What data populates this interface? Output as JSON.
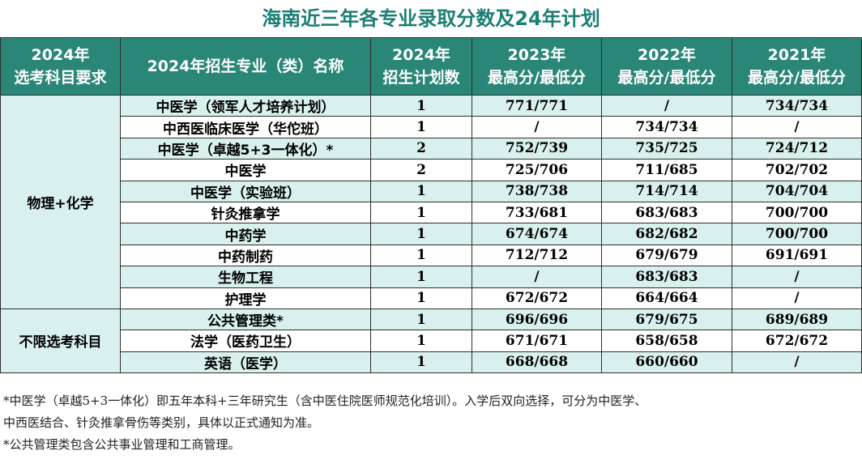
{
  "title": "海南近三年各专业录取分数及24年计划",
  "headers": {
    "req": [
      "2024年",
      "选考科目要求"
    ],
    "major": "2024年招生专业（类）名称",
    "plan": [
      "2024年",
      "招生计划数"
    ],
    "y2023": [
      "2023年",
      "最高分/最低分"
    ],
    "y2022": [
      "2022年",
      "最高分/最低分"
    ],
    "y2021": [
      "2021年",
      "最高分/最低分"
    ]
  },
  "groups": [
    {
      "requirement": "物理+化学",
      "rows": [
        {
          "major": "中医学（领军人才培养计划）",
          "plan": "1",
          "y2023": "771/771",
          "y2022": "/",
          "y2021": "734/734"
        },
        {
          "major": "中西医临床医学（华佗班）",
          "plan": "1",
          "y2023": "/",
          "y2022": "734/734",
          "y2021": "/"
        },
        {
          "major": "中医学（卓越5+3一体化）*",
          "plan": "2",
          "y2023": "752/739",
          "y2022": "735/725",
          "y2021": "724/712"
        },
        {
          "major": "中医学",
          "plan": "2",
          "y2023": "725/706",
          "y2022": "711/685",
          "y2021": "702/702"
        },
        {
          "major": "中医学（实验班）",
          "plan": "1",
          "y2023": "738/738",
          "y2022": "714/714",
          "y2021": "704/704"
        },
        {
          "major": "针灸推拿学",
          "plan": "1",
          "y2023": "733/681",
          "y2022": "683/683",
          "y2021": "700/700"
        },
        {
          "major": "中药学",
          "plan": "1",
          "y2023": "674/674",
          "y2022": "682/682",
          "y2021": "700/700"
        },
        {
          "major": "中药制药",
          "plan": "1",
          "y2023": "712/712",
          "y2022": "679/679",
          "y2021": "691/691"
        },
        {
          "major": "生物工程",
          "plan": "1",
          "y2023": "/",
          "y2022": "683/683",
          "y2021": "/"
        },
        {
          "major": "护理学",
          "plan": "1",
          "y2023": "672/672",
          "y2022": "664/664",
          "y2021": "/"
        }
      ]
    },
    {
      "requirement": "不限选考科目",
      "rows": [
        {
          "major": "公共管理类*",
          "plan": "1",
          "y2023": "696/696",
          "y2022": "679/675",
          "y2021": "689/689"
        },
        {
          "major": "法学（医药卫生）",
          "plan": "1",
          "y2023": "671/671",
          "y2022": "658/658",
          "y2021": "672/672"
        },
        {
          "major": "英语（医学）",
          "plan": "1",
          "y2023": "668/668",
          "y2022": "660/660",
          "y2021": "/"
        }
      ]
    }
  ],
  "notes": [
    "*中医学（卓越5+3一体化）即五年本科+三年研究生（含中医住院医师规范化培训）。入学后双向选择，可分为中医学、",
    "中西医结合、针灸推拿骨伤等类别，具体以正式通知为准。",
    "*公共管理类包含公共事业管理和工商管理。"
  ]
}
